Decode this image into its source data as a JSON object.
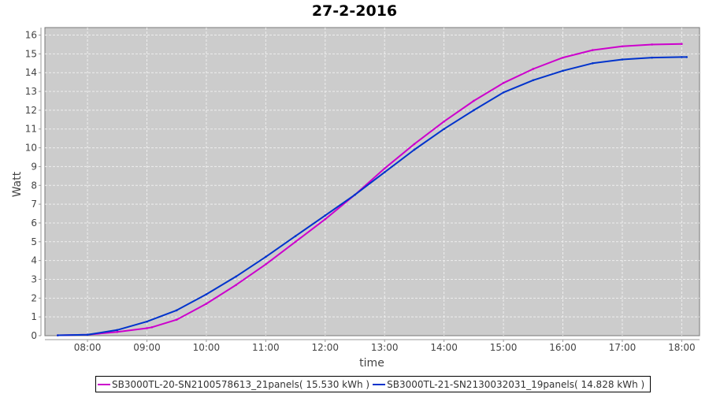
{
  "chart_data": {
    "type": "line",
    "title": "27-2-2016",
    "xlabel": "time",
    "ylabel": "Watt",
    "xlim": [
      "07:17",
      "18:18"
    ],
    "ylim": [
      0,
      16.4
    ],
    "x_ticks": [
      "08:00",
      "09:00",
      "10:00",
      "11:00",
      "12:00",
      "13:00",
      "14:00",
      "15:00",
      "16:00",
      "17:00",
      "18:00"
    ],
    "y_ticks": [
      0,
      1,
      2,
      3,
      4,
      5,
      6,
      7,
      8,
      9,
      10,
      11,
      12,
      13,
      14,
      15,
      16
    ],
    "grid": true,
    "legend_position": "bottom",
    "series": [
      {
        "name": "SB3000TL-20-SN2100578613_21panels( 15.530 kWh )",
        "color": "#cc00cc",
        "x": [
          "07:30",
          "08:00",
          "08:30",
          "09:00",
          "09:05",
          "09:30",
          "10:00",
          "10:30",
          "11:00",
          "11:30",
          "12:00",
          "12:30",
          "13:00",
          "13:30",
          "14:00",
          "14:30",
          "15:00",
          "15:30",
          "16:00",
          "16:30",
          "17:00",
          "17:30",
          "18:00"
        ],
        "y": [
          0.02,
          0.05,
          0.2,
          0.4,
          0.45,
          0.85,
          1.7,
          2.7,
          3.8,
          5.0,
          6.2,
          7.5,
          8.9,
          10.2,
          11.4,
          12.5,
          13.45,
          14.2,
          14.8,
          15.2,
          15.4,
          15.5,
          15.53
        ]
      },
      {
        "name": "SB3000TL-21-SN2130032031_19panels( 14.828 kWh )",
        "color": "#0033cc",
        "x": [
          "07:30",
          "08:00",
          "08:30",
          "09:00",
          "09:30",
          "10:00",
          "10:30",
          "11:00",
          "11:30",
          "12:00",
          "12:30",
          "13:00",
          "13:30",
          "14:00",
          "14:30",
          "15:00",
          "15:30",
          "16:00",
          "16:30",
          "17:00",
          "17:30",
          "18:00",
          "18:05"
        ],
        "y": [
          0.02,
          0.05,
          0.3,
          0.75,
          1.35,
          2.2,
          3.15,
          4.2,
          5.3,
          6.4,
          7.5,
          8.7,
          9.9,
          11.0,
          12.0,
          12.95,
          13.6,
          14.1,
          14.5,
          14.7,
          14.8,
          14.83,
          14.83
        ]
      }
    ]
  }
}
